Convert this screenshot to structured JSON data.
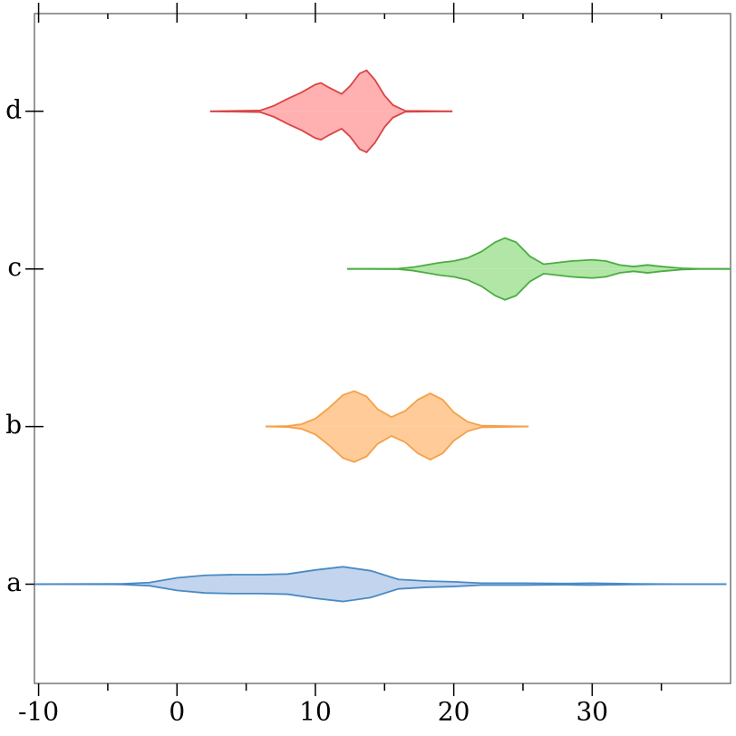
{
  "chart_data": {
    "type": "violin",
    "categories": [
      "a",
      "b",
      "c",
      "d"
    ],
    "xlim": [
      -10.3,
      40
    ],
    "xticks": [
      -10,
      0,
      10,
      20,
      30
    ],
    "xminorticks": [
      -5,
      5,
      15,
      25,
      35
    ],
    "ylim": [
      -0.63,
      3.62
    ],
    "series": [
      {
        "name": "a",
        "color": "#4a8ac4",
        "fill": "#c3d4ee",
        "x": [
          -10.3,
          -4,
          -2,
          0,
          2,
          4,
          6,
          8,
          10,
          12,
          14,
          16,
          18,
          20,
          22,
          25,
          28,
          30,
          33,
          36,
          39.7
        ],
        "width": [
          0,
          0.002,
          0.01,
          0.04,
          0.056,
          0.06,
          0.06,
          0.064,
          0.09,
          0.11,
          0.085,
          0.03,
          0.02,
          0.015,
          0.006,
          0.006,
          0.004,
          0.006,
          0.002,
          0,
          0
        ]
      },
      {
        "name": "b",
        "color": "#f5a04a",
        "fill": "#ffcc99",
        "x": [
          6.4,
          8,
          9,
          10,
          11,
          12,
          12.8,
          13.7,
          14.5,
          15.5,
          16.5,
          17.4,
          18.3,
          19.2,
          20,
          21,
          22,
          25.4
        ],
        "width": [
          0,
          0.003,
          0.015,
          0.05,
          0.12,
          0.2,
          0.225,
          0.19,
          0.11,
          0.06,
          0.1,
          0.17,
          0.21,
          0.17,
          0.09,
          0.03,
          0.005,
          0
        ]
      },
      {
        "name": "c",
        "color": "#4cac43",
        "fill": "#b1e6a6",
        "x": [
          12.3,
          16,
          17,
          18,
          19,
          20,
          21,
          22,
          23,
          23.7,
          24.5,
          25.5,
          26.5,
          27.5,
          28.5,
          30,
          31,
          32,
          33,
          34,
          35,
          36.5,
          38,
          40
        ],
        "width": [
          0,
          0.002,
          0.01,
          0.025,
          0.04,
          0.05,
          0.07,
          0.11,
          0.17,
          0.196,
          0.17,
          0.08,
          0.03,
          0.04,
          0.05,
          0.058,
          0.05,
          0.025,
          0.015,
          0.025,
          0.015,
          0.004,
          0,
          0
        ]
      },
      {
        "name": "d",
        "color": "#d94545",
        "fill": "#ffb0b0",
        "x": [
          2.4,
          6,
          7,
          8,
          9,
          10,
          10.4,
          11,
          11.9,
          12.5,
          13.2,
          13.7,
          14.3,
          15,
          15.6,
          16.5,
          19.9
        ],
        "width": [
          0,
          0.005,
          0.035,
          0.08,
          0.12,
          0.17,
          0.18,
          0.15,
          0.11,
          0.16,
          0.24,
          0.26,
          0.2,
          0.1,
          0.04,
          0.003,
          0
        ]
      }
    ]
  }
}
